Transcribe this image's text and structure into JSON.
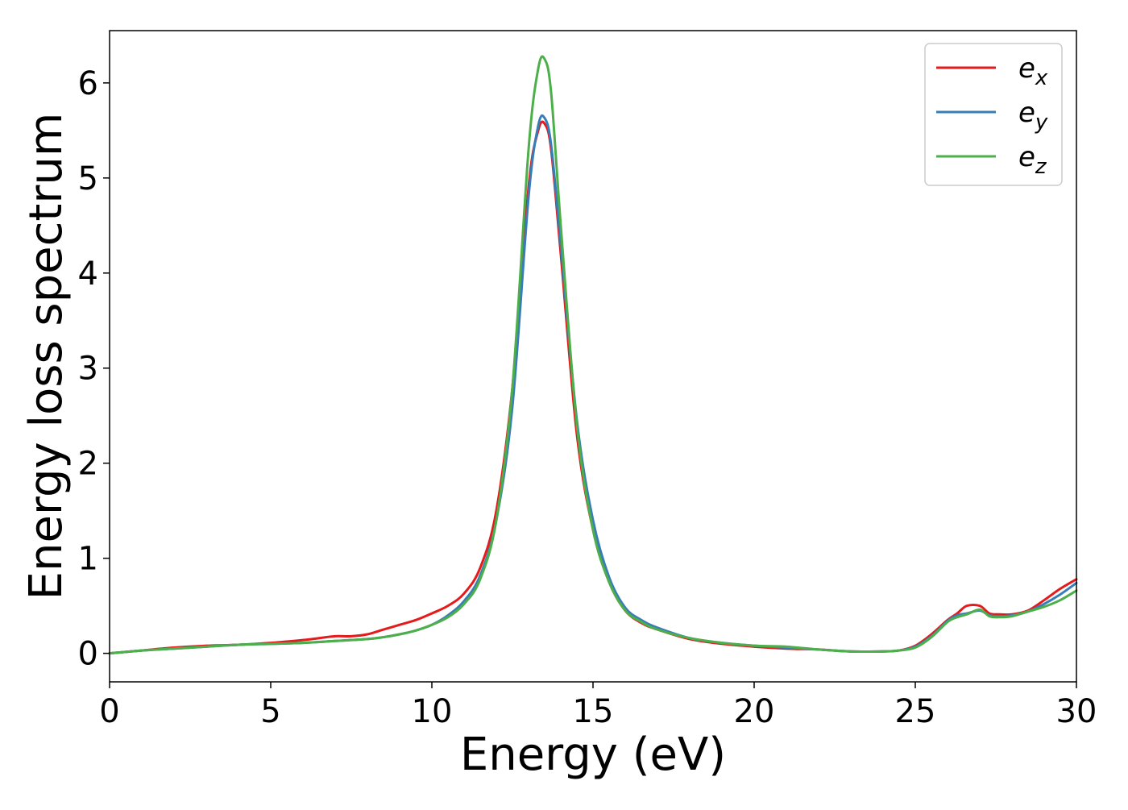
{
  "chart_data": {
    "type": "line",
    "title": "",
    "xlabel": "Energy (eV)",
    "ylabel": "Energy loss spectrum",
    "xlim": [
      0,
      30
    ],
    "ylim": [
      -0.3,
      6.55
    ],
    "xticks": [
      0,
      5,
      10,
      15,
      20,
      25,
      30
    ],
    "xtick_labels": [
      "0",
      "5",
      "10",
      "15",
      "20",
      "25",
      "30"
    ],
    "yticks": [
      0,
      1,
      2,
      3,
      4,
      5,
      6
    ],
    "ytick_labels": [
      "0",
      "1",
      "2",
      "3",
      "4",
      "5",
      "6"
    ],
    "grid": false,
    "legend_position": "top-right",
    "series": [
      {
        "name": "e_x",
        "legend_main": "e",
        "legend_sub": "x",
        "color": "#e41a1c",
        "x": [
          0,
          1,
          2,
          3,
          4,
          5,
          6,
          6.5,
          7,
          7.5,
          8,
          8.5,
          9,
          9.5,
          10,
          10.5,
          11,
          11.5,
          12,
          12.5,
          13,
          13.3,
          13.5,
          13.7,
          14,
          14.5,
          15,
          15.5,
          16,
          16.5,
          17,
          18,
          19,
          20,
          21,
          22,
          23,
          24,
          24.5,
          25,
          25.5,
          26,
          26.3,
          26.6,
          27,
          27.3,
          27.6,
          28,
          28.5,
          29,
          29.5,
          30
        ],
        "y": [
          0,
          0.03,
          0.06,
          0.08,
          0.09,
          0.11,
          0.14,
          0.16,
          0.18,
          0.18,
          0.2,
          0.25,
          0.3,
          0.35,
          0.42,
          0.5,
          0.63,
          0.9,
          1.5,
          2.8,
          4.9,
          5.5,
          5.57,
          5.3,
          4.2,
          2.3,
          1.3,
          0.75,
          0.45,
          0.32,
          0.25,
          0.15,
          0.1,
          0.07,
          0.05,
          0.04,
          0.02,
          0.02,
          0.03,
          0.08,
          0.2,
          0.35,
          0.42,
          0.5,
          0.5,
          0.42,
          0.41,
          0.41,
          0.45,
          0.56,
          0.68,
          0.78
        ]
      },
      {
        "name": "e_y",
        "legend_main": "e",
        "legend_sub": "y",
        "color": "#377eb8",
        "x": [
          0,
          1,
          2,
          3,
          4,
          5,
          6,
          7,
          8,
          8.5,
          9,
          9.5,
          10,
          10.5,
          11,
          11.5,
          12,
          12.5,
          13,
          13.3,
          13.5,
          13.7,
          14,
          14.5,
          15,
          15.5,
          16,
          16.5,
          17,
          18,
          19,
          20,
          21,
          22,
          23,
          24,
          24.5,
          25,
          25.5,
          26,
          26.3,
          26.6,
          27,
          27.3,
          27.6,
          28,
          28.5,
          29,
          29.5,
          30
        ],
        "y": [
          0,
          0.03,
          0.05,
          0.07,
          0.09,
          0.1,
          0.11,
          0.13,
          0.15,
          0.17,
          0.2,
          0.24,
          0.3,
          0.4,
          0.55,
          0.82,
          1.4,
          2.6,
          4.8,
          5.55,
          5.63,
          5.35,
          4.3,
          2.45,
          1.4,
          0.8,
          0.48,
          0.35,
          0.27,
          0.16,
          0.11,
          0.08,
          0.06,
          0.04,
          0.02,
          0.02,
          0.03,
          0.07,
          0.18,
          0.34,
          0.4,
          0.42,
          0.45,
          0.4,
          0.39,
          0.4,
          0.44,
          0.52,
          0.62,
          0.74
        ]
      },
      {
        "name": "e_z",
        "legend_main": "e",
        "legend_sub": "z",
        "color": "#4daf4a",
        "x": [
          0,
          1,
          2,
          3,
          4,
          5,
          6,
          7,
          8,
          8.5,
          9,
          9.5,
          10,
          10.5,
          11,
          11.5,
          12,
          12.5,
          13,
          13.3,
          13.5,
          13.7,
          14,
          14.5,
          15,
          15.5,
          16,
          16.5,
          17,
          18,
          19,
          20,
          21,
          22,
          23,
          24,
          24.5,
          25,
          25.5,
          26,
          26.3,
          26.6,
          27,
          27.3,
          27.6,
          28,
          28.5,
          29,
          29.5,
          30
        ],
        "y": [
          0,
          0.03,
          0.05,
          0.07,
          0.09,
          0.1,
          0.11,
          0.13,
          0.15,
          0.17,
          0.2,
          0.24,
          0.3,
          0.38,
          0.52,
          0.78,
          1.4,
          2.8,
          5.3,
          6.15,
          6.25,
          5.9,
          4.5,
          2.4,
          1.3,
          0.75,
          0.45,
          0.33,
          0.25,
          0.16,
          0.11,
          0.08,
          0.07,
          0.04,
          0.02,
          0.02,
          0.03,
          0.06,
          0.17,
          0.33,
          0.38,
          0.41,
          0.46,
          0.39,
          0.38,
          0.39,
          0.44,
          0.49,
          0.56,
          0.66
        ]
      }
    ]
  }
}
